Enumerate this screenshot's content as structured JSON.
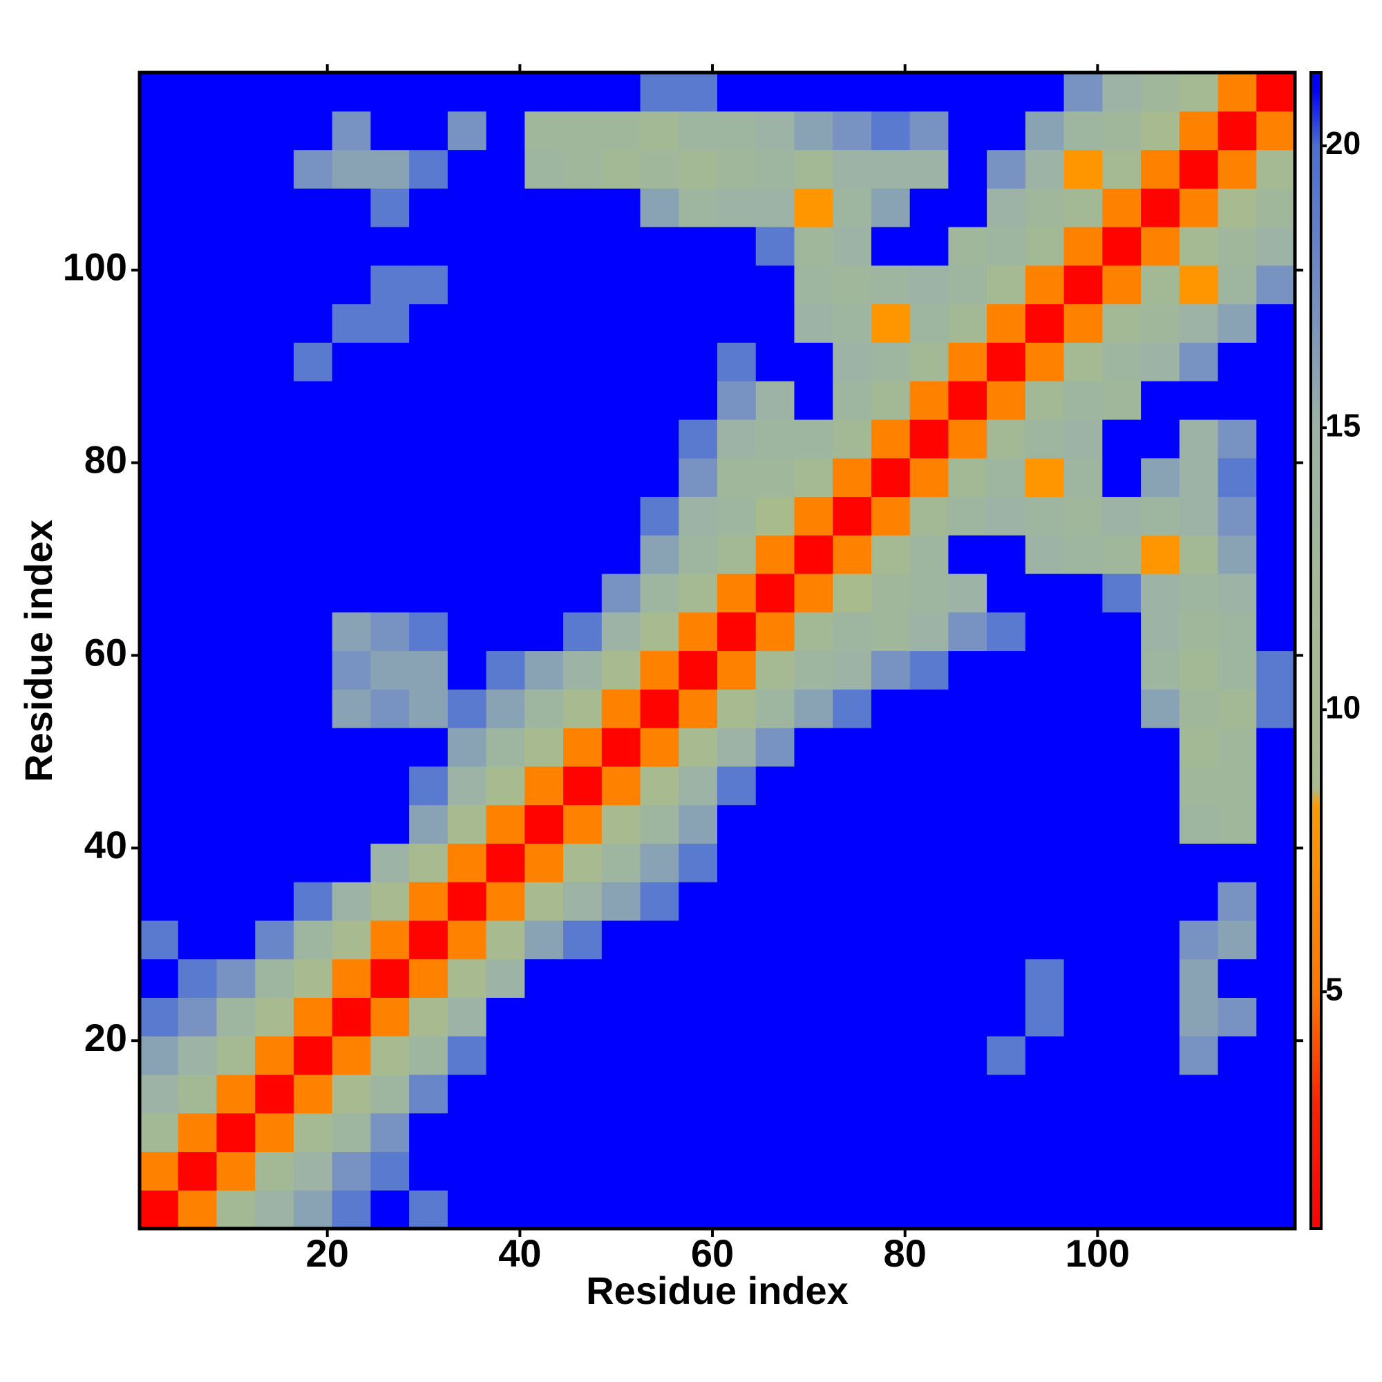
{
  "chart_data": {
    "type": "heatmap",
    "xlabel": "Residue index",
    "ylabel": "Residue index",
    "x_bins": [
      0.5,
      4.5,
      8.5,
      12.5,
      16.5,
      20.5,
      24.5,
      28.5,
      32.5,
      36.5,
      40.5,
      44.5,
      48.5,
      52.5,
      56.5,
      60.5,
      64.5,
      68.5,
      72.5,
      76.5,
      80.5,
      84.5,
      88.5,
      92.5,
      96.5,
      100.5,
      104.5,
      108.5,
      112.5,
      116.5,
      120.5
    ],
    "y_bins": [
      0.5,
      4.5,
      8.5,
      12.5,
      16.5,
      20.5,
      24.5,
      28.5,
      32.5,
      36.5,
      40.5,
      44.5,
      48.5,
      52.5,
      56.5,
      60.5,
      64.5,
      68.5,
      72.5,
      76.5,
      80.5,
      84.5,
      88.5,
      92.5,
      96.5,
      100.5,
      104.5,
      108.5,
      112.5,
      116.5,
      120.5
    ],
    "xlim": [
      0.5,
      120.5
    ],
    "ylim": [
      0.5,
      120.5
    ],
    "xticks": [
      20,
      40,
      60,
      80,
      100
    ],
    "yticks": [
      20,
      40,
      60,
      80,
      100
    ],
    "clim": [
      0.8,
      21.3
    ],
    "cticks": [
      5,
      10,
      15,
      20
    ],
    "colorscale": [
      [
        0.8,
        "#ff0000"
      ],
      [
        3,
        "#ff2200"
      ],
      [
        5,
        "#ff7700"
      ],
      [
        8.3,
        "#ff9900"
      ],
      [
        8.6,
        "#a9bb8c"
      ],
      [
        12,
        "#a3b995"
      ],
      [
        15,
        "#9cb3a6"
      ],
      [
        17,
        "#7892c2"
      ],
      [
        20,
        "#4a6ed4"
      ],
      [
        21,
        "#0000ff"
      ]
    ],
    "z": [
      [
        1,
        6,
        12,
        15,
        16,
        19,
        21,
        19,
        21,
        21,
        21,
        21,
        21,
        21,
        21,
        21,
        21,
        21,
        21,
        21,
        21,
        21,
        21,
        21,
        21,
        21,
        21,
        21,
        21,
        21
      ],
      [
        6,
        1,
        6,
        12,
        15,
        17,
        19,
        21,
        21,
        21,
        21,
        21,
        21,
        21,
        21,
        21,
        21,
        21,
        21,
        21,
        21,
        21,
        21,
        21,
        21,
        21,
        21,
        21,
        21,
        21
      ],
      [
        12,
        6,
        1,
        6,
        11,
        14,
        17,
        21,
        21,
        21,
        21,
        21,
        21,
        21,
        21,
        21,
        21,
        21,
        21,
        21,
        21,
        21,
        21,
        21,
        21,
        21,
        21,
        21,
        21,
        21
      ],
      [
        15,
        12,
        6,
        1,
        6,
        10,
        14,
        18,
        21,
        21,
        21,
        21,
        21,
        21,
        21,
        21,
        21,
        21,
        21,
        21,
        21,
        21,
        21,
        21,
        21,
        21,
        21,
        21,
        21,
        21
      ],
      [
        16,
        15,
        11,
        6,
        1,
        6,
        10,
        14,
        19,
        21,
        21,
        21,
        21,
        21,
        21,
        21,
        21,
        21,
        21,
        21,
        21,
        21,
        19,
        21,
        21,
        21,
        21,
        17,
        21,
        21
      ],
      [
        19,
        17,
        14,
        10,
        6,
        1,
        6,
        10,
        15,
        21,
        21,
        21,
        21,
        21,
        21,
        21,
        21,
        21,
        21,
        21,
        21,
        21,
        21,
        19,
        21,
        21,
        21,
        16,
        17,
        21
      ],
      [
        21,
        19,
        17,
        14,
        10,
        6,
        1,
        6,
        10,
        15,
        21,
        21,
        21,
        21,
        21,
        21,
        21,
        21,
        21,
        21,
        21,
        21,
        21,
        19,
        21,
        21,
        21,
        16,
        21,
        21
      ],
      [
        19,
        21,
        21,
        18,
        14,
        10,
        6,
        1,
        6,
        10,
        16,
        19,
        21,
        21,
        21,
        21,
        21,
        21,
        21,
        21,
        21,
        21,
        21,
        21,
        21,
        21,
        21,
        17,
        16,
        21
      ],
      [
        21,
        21,
        21,
        21,
        19,
        15,
        10,
        6,
        1,
        6,
        10,
        15,
        16,
        19,
        21,
        21,
        21,
        21,
        21,
        21,
        21,
        21,
        21,
        21,
        21,
        21,
        21,
        21,
        17,
        21
      ],
      [
        21,
        21,
        21,
        21,
        21,
        21,
        15,
        10,
        6,
        1,
        6,
        10,
        14,
        16,
        19,
        21,
        21,
        21,
        21,
        21,
        21,
        21,
        21,
        21,
        21,
        21,
        21,
        21,
        21,
        21
      ],
      [
        21,
        21,
        21,
        21,
        21,
        21,
        21,
        16,
        10,
        6,
        1,
        6,
        10,
        14,
        16,
        21,
        21,
        21,
        21,
        21,
        21,
        21,
        21,
        21,
        21,
        21,
        21,
        14,
        13,
        21
      ],
      [
        21,
        21,
        21,
        21,
        21,
        21,
        21,
        19,
        15,
        10,
        6,
        1,
        6,
        10,
        15,
        19,
        21,
        21,
        21,
        21,
        21,
        21,
        21,
        21,
        21,
        21,
        21,
        13,
        13,
        21
      ],
      [
        21,
        21,
        21,
        21,
        21,
        21,
        21,
        21,
        16,
        14,
        10,
        6,
        1,
        6,
        10,
        15,
        17,
        21,
        21,
        21,
        21,
        21,
        21,
        21,
        21,
        21,
        21,
        12,
        13,
        21
      ],
      [
        21,
        21,
        21,
        21,
        21,
        16,
        17,
        16,
        19,
        16,
        14,
        10,
        6,
        1,
        6,
        10,
        14,
        16,
        19,
        21,
        21,
        21,
        21,
        21,
        21,
        21,
        16,
        13,
        12,
        19
      ],
      [
        21,
        21,
        21,
        21,
        21,
        17,
        16,
        16,
        21,
        19,
        16,
        15,
        10,
        6,
        1,
        6,
        11,
        14,
        15,
        17,
        19,
        21,
        21,
        21,
        21,
        21,
        14,
        12,
        14,
        19
      ],
      [
        21,
        21,
        21,
        21,
        21,
        16,
        17,
        19,
        21,
        21,
        21,
        19,
        15,
        10,
        6,
        1,
        6,
        12,
        14,
        13,
        15,
        17,
        19,
        21,
        21,
        21,
        15,
        13,
        14,
        21
      ],
      [
        21,
        21,
        21,
        21,
        21,
        21,
        21,
        21,
        21,
        21,
        21,
        21,
        17,
        14,
        11,
        6,
        1,
        6,
        9,
        13,
        14,
        15,
        21,
        21,
        21,
        19,
        15,
        14,
        15,
        21
      ],
      [
        21,
        21,
        21,
        21,
        21,
        21,
        21,
        21,
        21,
        21,
        21,
        21,
        21,
        16,
        14,
        12,
        6,
        1,
        6,
        11,
        14,
        21,
        21,
        15,
        14,
        13,
        8,
        12,
        16,
        21
      ],
      [
        21,
        21,
        21,
        21,
        21,
        21,
        21,
        21,
        21,
        21,
        21,
        21,
        21,
        19,
        15,
        14,
        9,
        6,
        1,
        6,
        12,
        14,
        15,
        14,
        13,
        15,
        14,
        15,
        17,
        21
      ],
      [
        21,
        21,
        21,
        21,
        21,
        21,
        21,
        21,
        21,
        21,
        21,
        21,
        21,
        21,
        17,
        13,
        13,
        11,
        6,
        1,
        6,
        12,
        14,
        8,
        14,
        21,
        16,
        15,
        19,
        21
      ],
      [
        21,
        21,
        21,
        21,
        21,
        21,
        21,
        21,
        21,
        21,
        21,
        21,
        21,
        21,
        19,
        15,
        14,
        14,
        12,
        6,
        1,
        6,
        12,
        14,
        15,
        21,
        21,
        15,
        17,
        21
      ],
      [
        21,
        21,
        21,
        21,
        21,
        21,
        21,
        21,
        21,
        21,
        21,
        21,
        21,
        21,
        21,
        17,
        15,
        21,
        14,
        12,
        6,
        1,
        6,
        12,
        14,
        13,
        21,
        21,
        21,
        21
      ],
      [
        21,
        21,
        21,
        21,
        19,
        21,
        21,
        21,
        21,
        21,
        21,
        21,
        21,
        21,
        21,
        19,
        21,
        21,
        15,
        14,
        12,
        6,
        1,
        6,
        11,
        14,
        15,
        17,
        21,
        21
      ],
      [
        21,
        21,
        21,
        21,
        21,
        19,
        19,
        21,
        21,
        21,
        21,
        21,
        21,
        21,
        21,
        21,
        21,
        15,
        14,
        8,
        14,
        12,
        6,
        1,
        6,
        12,
        13,
        15,
        16,
        21
      ],
      [
        21,
        21,
        21,
        21,
        21,
        21,
        19,
        19,
        21,
        21,
        21,
        21,
        21,
        21,
        21,
        21,
        21,
        14,
        13,
        14,
        15,
        14,
        11,
        6,
        1,
        6,
        12,
        8,
        14,
        17
      ],
      [
        21,
        21,
        21,
        21,
        21,
        21,
        21,
        21,
        21,
        21,
        21,
        21,
        21,
        21,
        21,
        21,
        19,
        13,
        15,
        21,
        21,
        13,
        14,
        12,
        6,
        1,
        6,
        11,
        13,
        15
      ],
      [
        21,
        21,
        21,
        21,
        21,
        21,
        19,
        21,
        21,
        21,
        21,
        21,
        21,
        16,
        14,
        15,
        15,
        8,
        14,
        16,
        21,
        21,
        15,
        13,
        12,
        6,
        1,
        6,
        10,
        13
      ],
      [
        21,
        21,
        21,
        21,
        17,
        16,
        16,
        19,
        21,
        21,
        14,
        13,
        12,
        13,
        12,
        13,
        14,
        12,
        15,
        15,
        15,
        21,
        17,
        15,
        8,
        11,
        6,
        1,
        6,
        11
      ],
      [
        21,
        21,
        21,
        21,
        21,
        17,
        21,
        21,
        17,
        21,
        13,
        13,
        13,
        12,
        14,
        14,
        15,
        16,
        17,
        19,
        17,
        21,
        21,
        16,
        14,
        13,
        10,
        6,
        1,
        6
      ],
      [
        21,
        21,
        21,
        21,
        21,
        21,
        21,
        21,
        21,
        21,
        21,
        21,
        21,
        19,
        19,
        21,
        21,
        21,
        21,
        21,
        21,
        21,
        21,
        21,
        17,
        15,
        13,
        11,
        6,
        1
      ]
    ]
  }
}
